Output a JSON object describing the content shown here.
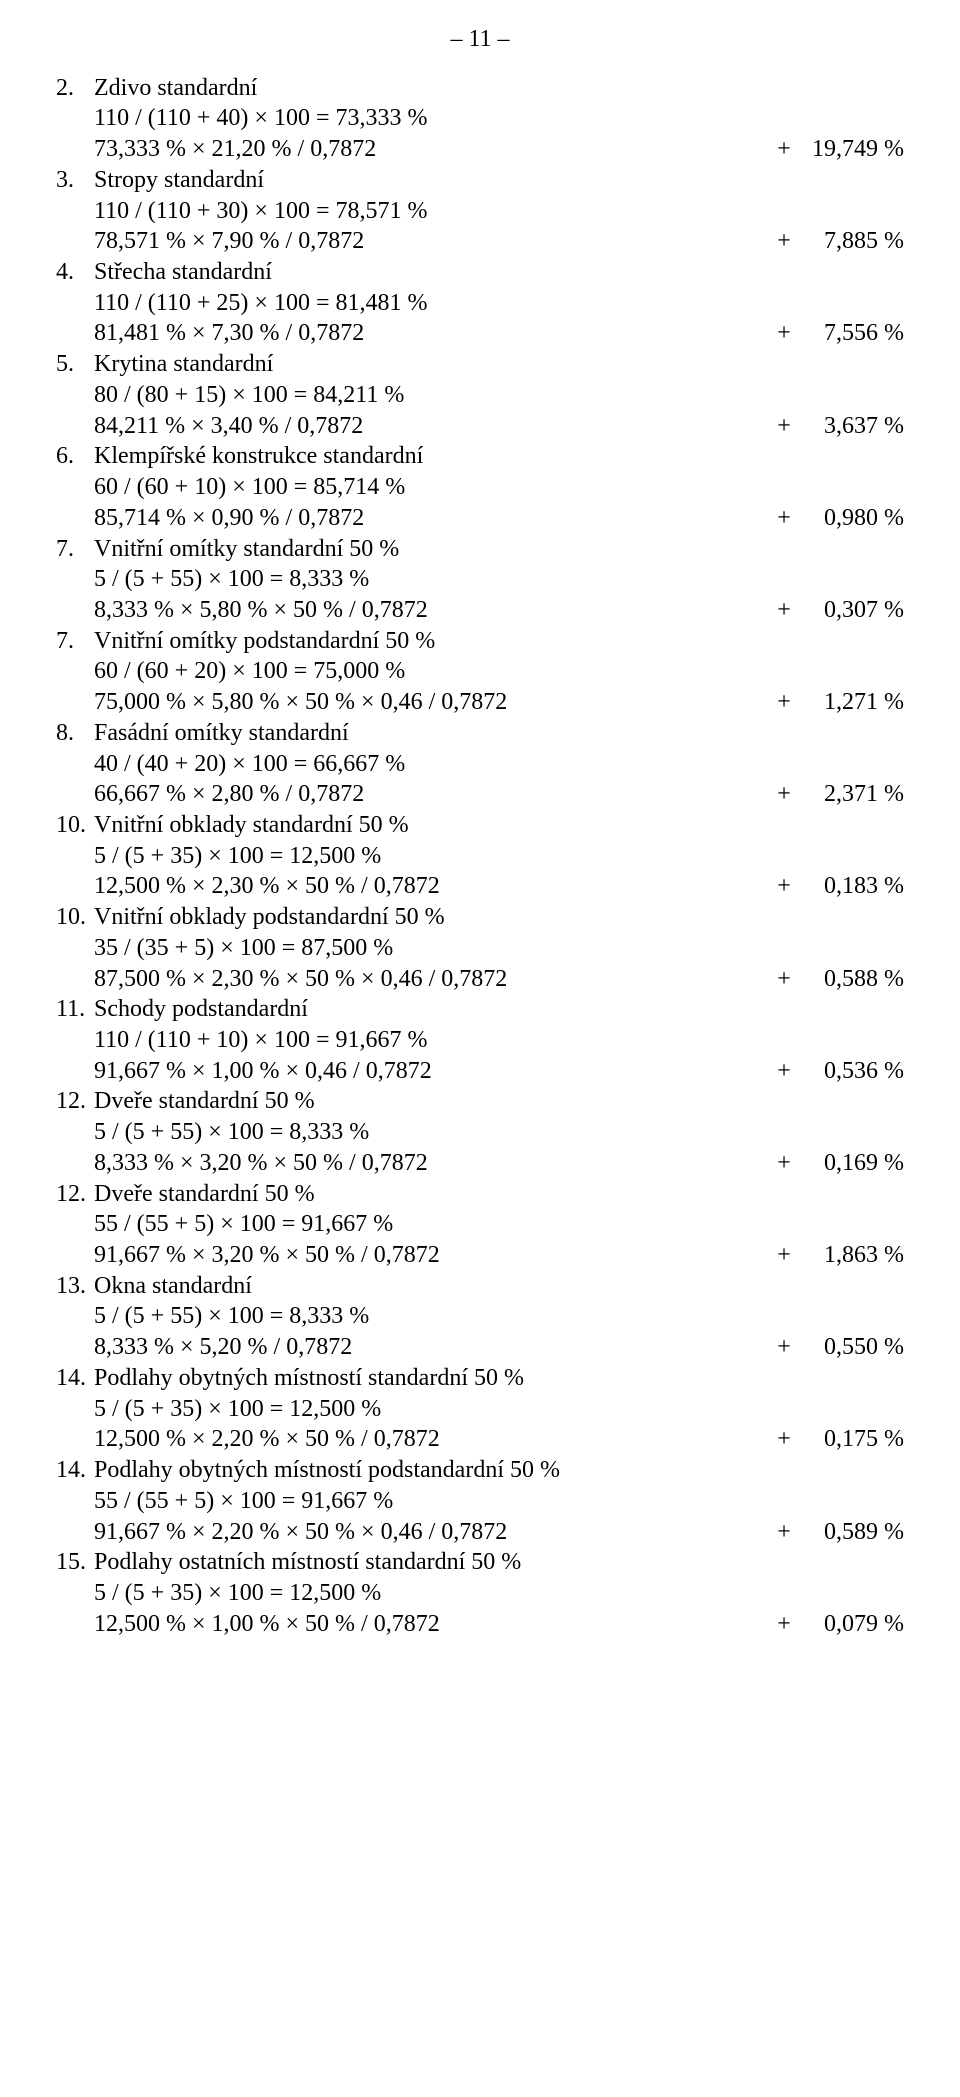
{
  "page_number": "– 11 –",
  "items": [
    {
      "num": "2.",
      "heading": "Zdivo standardní",
      "calc": "110 / (110 + 40) × 100 = 73,333 %",
      "result": "73,333 % × 21,20 % / 0,7872",
      "plus": "+",
      "value": "19,749 %"
    },
    {
      "num": "3.",
      "heading": "Stropy standardní",
      "calc": "110 / (110 + 30) × 100 = 78,571 %",
      "result": "78,571 % × 7,90 % / 0,7872",
      "plus": "+",
      "value": "7,885 %"
    },
    {
      "num": "4.",
      "heading": "Střecha standardní",
      "calc": "110 / (110 + 25) × 100 = 81,481 %",
      "result": "81,481 % × 7,30 % / 0,7872",
      "plus": "+",
      "value": "7,556 %"
    },
    {
      "num": "5.",
      "heading": "Krytina standardní",
      "calc": "80 / (80 + 15) × 100 = 84,211 %",
      "result": "84,211 % × 3,40 % / 0,7872",
      "plus": "+",
      "value": "3,637 %"
    },
    {
      "num": "6.",
      "heading": "Klempířské konstrukce standardní",
      "calc": "60 / (60 + 10) × 100 = 85,714 %",
      "result": "85,714 % × 0,90 % / 0,7872",
      "plus": "+",
      "value": "0,980 %"
    },
    {
      "num": "7.",
      "heading": "Vnitřní omítky standardní 50 %",
      "calc": "5 / (5 + 55) × 100 = 8,333 %",
      "result": "8,333 % × 5,80 % × 50 % / 0,7872",
      "plus": "+",
      "value": "0,307 %"
    },
    {
      "num": "7.",
      "heading": "Vnitřní omítky podstandardní 50 %",
      "calc": "60 / (60 + 20) × 100 = 75,000 %",
      "result": "75,000 % × 5,80 % × 50 % × 0,46 / 0,7872",
      "plus": "+",
      "value": "1,271 %"
    },
    {
      "num": "8.",
      "heading": "Fasádní omítky standardní",
      "calc": "40 / (40 + 20) × 100 = 66,667 %",
      "result": "66,667 % × 2,80 % / 0,7872",
      "plus": "+",
      "value": "2,371 %"
    },
    {
      "num": "10.",
      "heading": "Vnitřní obklady standardní 50 %",
      "calc": "5 / (5 + 35) × 100 = 12,500 %",
      "result": "12,500 % × 2,30 % × 50 % / 0,7872",
      "plus": "+",
      "value": "0,183 %"
    },
    {
      "num": "10.",
      "heading": "Vnitřní obklady podstandardní 50 %",
      "calc": "35 / (35 + 5) × 100 = 87,500 %",
      "result": "87,500 % × 2,30 % × 50 % × 0,46 / 0,7872",
      "plus": "+",
      "value": "0,588 %"
    },
    {
      "num": "11.",
      "heading": "Schody podstandardní",
      "calc": "110 / (110 + 10) × 100 = 91,667 %",
      "result": "91,667 % × 1,00 % × 0,46 / 0,7872",
      "plus": "+",
      "value": "0,536 %"
    },
    {
      "num": "12.",
      "heading": "Dveře standardní 50 %",
      "calc": "5 / (5 + 55) × 100 = 8,333 %",
      "result": "8,333 % × 3,20 % × 50 % / 0,7872",
      "plus": "+",
      "value": "0,169 %"
    },
    {
      "num": "12.",
      "heading": "Dveře standardní 50 %",
      "calc": "55 / (55 + 5) × 100 = 91,667 %",
      "result": "91,667 % × 3,20 % × 50 % / 0,7872",
      "plus": "+",
      "value": "1,863 %"
    },
    {
      "num": "13.",
      "heading": "Okna standardní",
      "calc": "5 / (5 + 55) × 100 = 8,333 %",
      "result": "8,333 % × 5,20 % / 0,7872",
      "plus": "+",
      "value": "0,550 %"
    },
    {
      "num": "14.",
      "heading": "Podlahy obytných místností standardní 50 %",
      "calc": "5 / (5 + 35) × 100 = 12,500 %",
      "result": "12,500 % × 2,20 % × 50 % / 0,7872",
      "plus": "+",
      "value": "0,175 %"
    },
    {
      "num": "14.",
      "heading": "Podlahy obytných místností podstandardní 50 %",
      "calc": "55 / (55 + 5) × 100 = 91,667 %",
      "result": "91,667 % × 2,20 % × 50 % × 0,46 / 0,7872",
      "plus": "+",
      "value": "0,589 %"
    },
    {
      "num": "15.",
      "heading": "Podlahy ostatních místností standardní 50 %",
      "calc": "5 / (5 + 35) × 100 = 12,500 %",
      "result": "12,500 % × 1,00 % × 50 % / 0,7872",
      "plus": "+",
      "value": "0,079 %"
    }
  ]
}
